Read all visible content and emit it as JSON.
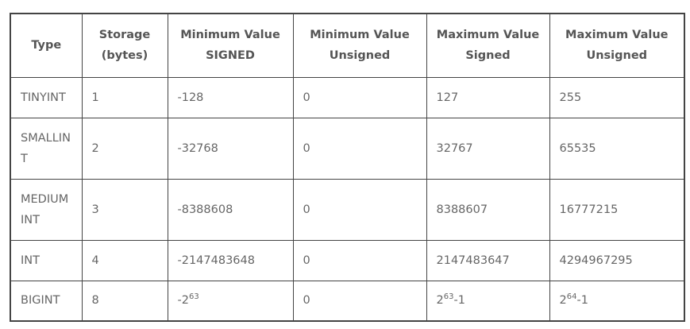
{
  "table": {
    "headers": [
      {
        "line1": "Type",
        "line2": ""
      },
      {
        "line1": "Storage",
        "line2": "(bytes)"
      },
      {
        "line1": "Minimum Value",
        "line2": "SIGNED"
      },
      {
        "line1": "Minimum Value",
        "line2": "Unsigned"
      },
      {
        "line1": "Maximum Value",
        "line2": "Signed"
      },
      {
        "line1": "Maximum Value",
        "line2": "Unsigned"
      }
    ],
    "rows": [
      {
        "type_l1": "TINYINT",
        "type_l2": "",
        "storage": "1",
        "min_signed": "-128",
        "min_unsigned": "0",
        "max_signed": "127",
        "max_unsigned": "255"
      },
      {
        "type_l1": "SMALLIN",
        "type_l2": "T",
        "storage": "2",
        "min_signed": "-32768",
        "min_unsigned": "0",
        "max_signed": "32767",
        "max_unsigned": "65535"
      },
      {
        "type_l1": "MEDIUM",
        "type_l2": "INT",
        "storage": "3",
        "min_signed": "-8388608",
        "min_unsigned": "0",
        "max_signed": "8388607",
        "max_unsigned": "16777215"
      },
      {
        "type_l1": "INT",
        "type_l2": "",
        "storage": "4",
        "min_signed": "-2147483648",
        "min_unsigned": "0",
        "max_signed": "2147483647",
        "max_unsigned": "4294967295"
      },
      {
        "type_l1": "BIGINT",
        "type_l2": "",
        "storage": "8",
        "min_signed_base": "-2",
        "min_signed_exp": "63",
        "min_unsigned": "0",
        "max_signed_base": "2",
        "max_signed_exp": "63",
        "max_signed_suffix": "-1",
        "max_unsigned_base": "2",
        "max_unsigned_exp": "64",
        "max_unsigned_suffix": "-1"
      }
    ]
  }
}
